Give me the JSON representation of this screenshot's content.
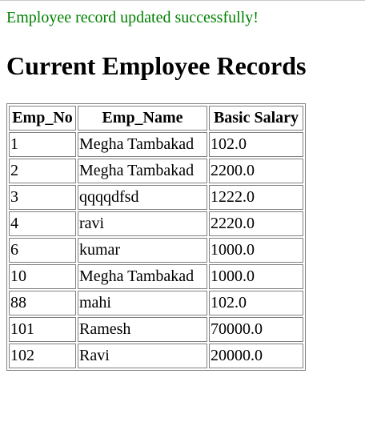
{
  "status": {
    "message": "Employee record updated successfully!",
    "color": "#008000"
  },
  "page": {
    "title": "Current Employee Records"
  },
  "table": {
    "headers": [
      "Emp_No",
      "Emp_Name",
      "Basic Salary"
    ],
    "rows": [
      [
        "1",
        "Megha Tambakad",
        "102.0"
      ],
      [
        "2",
        "Megha Tambakad",
        "2200.0"
      ],
      [
        "3",
        "qqqqdfsd",
        "1222.0"
      ],
      [
        "4",
        "ravi",
        "2220.0"
      ],
      [
        "6",
        "kumar",
        "1000.0"
      ],
      [
        "10",
        "Megha Tambakad",
        "1000.0"
      ],
      [
        "88",
        "mahi",
        "102.0"
      ],
      [
        "101",
        "Ramesh",
        "70000.0"
      ],
      [
        "102",
        "Ravi",
        "20000.0"
      ]
    ]
  }
}
